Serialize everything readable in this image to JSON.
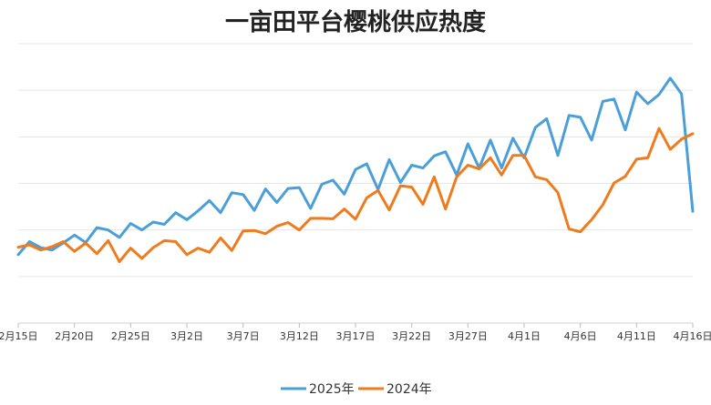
{
  "chart_data": {
    "type": "line",
    "title": "一亩田平台樱桃供应热度",
    "xlabel": "",
    "ylabel": "",
    "y_tick_labels_shown": false,
    "grid": "horizontal",
    "legend_position": "bottom",
    "ylim": [
      0,
      6
    ],
    "x": [
      "2月15日",
      "2月16日",
      "2月17日",
      "2月18日",
      "2月19日",
      "2月20日",
      "2月21日",
      "2月22日",
      "2月23日",
      "2月24日",
      "2月25日",
      "2月26日",
      "2月27日",
      "2月28日",
      "3月1日",
      "3月2日",
      "3月3日",
      "3月4日",
      "3月5日",
      "3月6日",
      "3月7日",
      "3月8日",
      "3月9日",
      "3月10日",
      "3月11日",
      "3月12日",
      "3月13日",
      "3月14日",
      "3月15日",
      "3月16日",
      "3月17日",
      "3月18日",
      "3月19日",
      "3月20日",
      "3月21日",
      "3月22日",
      "3月23日",
      "3月24日",
      "3月25日",
      "3月26日",
      "3月27日",
      "3月28日",
      "3月29日",
      "3月30日",
      "3月31日",
      "4月1日",
      "4月2日",
      "4月3日",
      "4月4日",
      "4月5日",
      "4月6日",
      "4月7日",
      "4月8日",
      "4月9日",
      "4月10日",
      "4月11日",
      "4月12日",
      "4月13日",
      "4月14日",
      "4月15日",
      "4月16日"
    ],
    "x_tick_labels": [
      "2月15日",
      "2月20日",
      "2月25日",
      "3月2日",
      "3月7日",
      "3月12日",
      "3月17日",
      "3月22日",
      "3月27日",
      "4月1日",
      "4月6日",
      "4月11日",
      "4月16日"
    ],
    "series": [
      {
        "name": "2025年",
        "color": "#4a9fd8",
        "values": [
          1.47,
          1.75,
          1.62,
          1.57,
          1.72,
          1.89,
          1.73,
          2.05,
          2.0,
          1.84,
          2.14,
          2.0,
          2.17,
          2.12,
          2.37,
          2.22,
          2.41,
          2.63,
          2.37,
          2.8,
          2.76,
          2.42,
          2.88,
          2.59,
          2.89,
          2.91,
          2.46,
          2.98,
          3.07,
          2.77,
          3.3,
          3.42,
          2.87,
          3.51,
          3.02,
          3.39,
          3.33,
          3.59,
          3.68,
          3.18,
          3.85,
          3.33,
          3.93,
          3.33,
          3.97,
          3.55,
          4.2,
          4.39,
          3.6,
          4.46,
          4.42,
          3.93,
          4.76,
          4.81,
          4.15,
          4.96,
          4.71,
          4.91,
          5.26,
          4.92,
          2.4
        ]
      },
      {
        "name": "2024年",
        "color": "#f07b1d",
        "values": [
          1.63,
          1.68,
          1.57,
          1.64,
          1.75,
          1.54,
          1.72,
          1.49,
          1.77,
          1.32,
          1.61,
          1.39,
          1.62,
          1.77,
          1.75,
          1.47,
          1.61,
          1.52,
          1.83,
          1.56,
          1.98,
          1.99,
          1.92,
          2.08,
          2.16,
          2.0,
          2.25,
          2.25,
          2.24,
          2.45,
          2.23,
          2.69,
          2.85,
          2.43,
          2.95,
          2.92,
          2.55,
          3.14,
          2.45,
          3.14,
          3.39,
          3.31,
          3.55,
          3.18,
          3.6,
          3.6,
          3.14,
          3.08,
          2.8,
          2.02,
          1.96,
          2.22,
          2.54,
          3.01,
          3.15,
          3.52,
          3.55,
          4.18,
          3.73,
          3.95,
          4.07
        ]
      }
    ]
  }
}
